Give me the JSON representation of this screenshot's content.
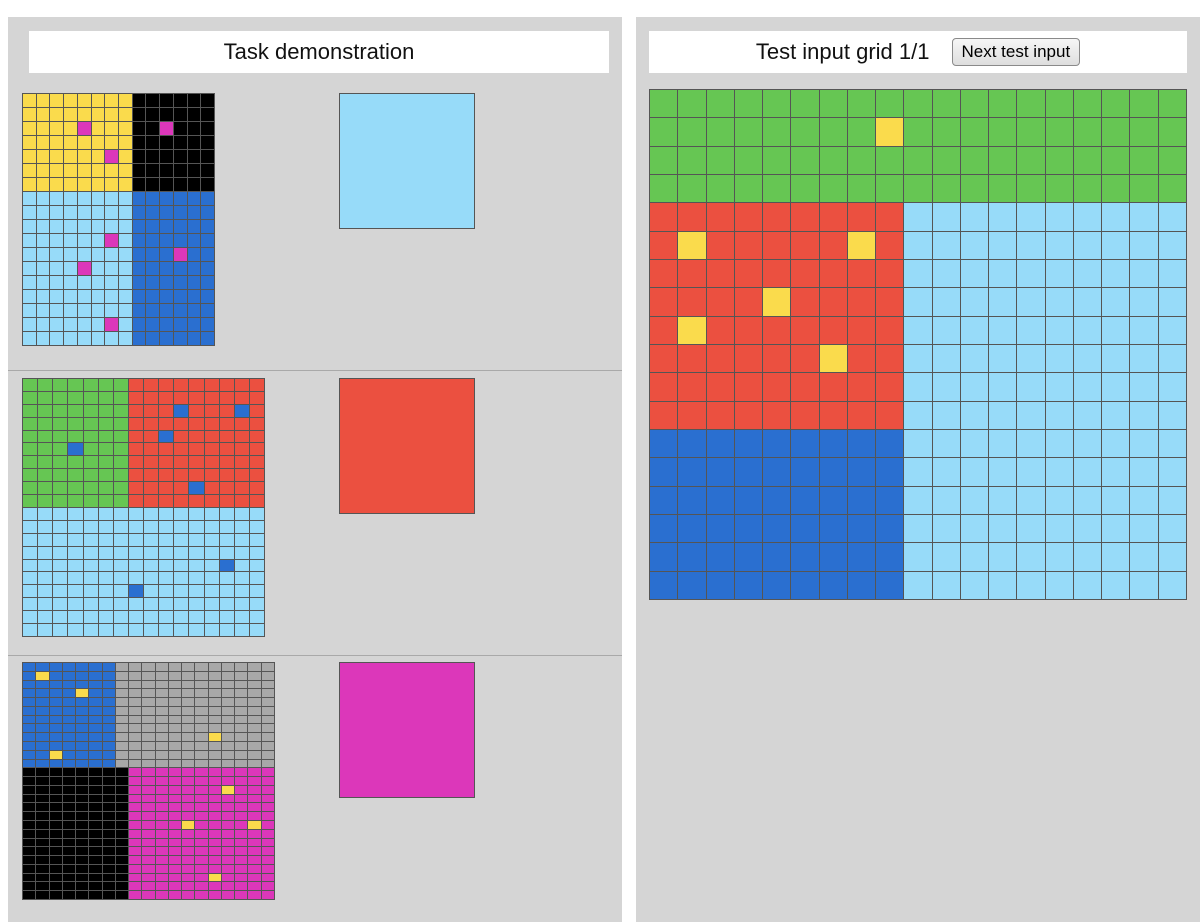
{
  "left_title": "Task demonstration",
  "right_title": "Test input grid 1/1",
  "next_button_label": "Next test input",
  "colors": {
    "0": "#000000",
    "1": "#2a6fd0",
    "2": "#eb5040",
    "3": "#66c653",
    "4": "#fadb4c",
    "5": "#a8a8a8",
    "6": "#dc37ba",
    "8": "#97dbf9"
  },
  "examples": [
    {
      "input_rows": [
        "44444444000000",
        "44444444000000",
        "44446444006000",
        "44444444000000",
        "44444464000000",
        "44444444000000",
        "44444444000000",
        "88888888111111",
        "88888888111111",
        "88888888111111",
        "88888868111111",
        "88888888111611",
        "88886888111111",
        "88888888111111",
        "88888888111111",
        "88888888111111",
        "88888868111111",
        "88888888111111"
      ],
      "output_rows": [
        "8"
      ]
    },
    {
      "input_rows": [
        "3333333222222222",
        "3333333222222222",
        "3333333222122212",
        "3333333222222222",
        "3333333221222222",
        "3331333222222222",
        "3333333222222222",
        "3333333222222222",
        "3333333222212222",
        "3333333222222222",
        "8888888888888888",
        "8888888888888888",
        "8888888888888888",
        "8888888888888888",
        "8888888888888188",
        "8888888888888888",
        "8888888188888888",
        "8888888888888888",
        "8888888888888888",
        "8888888888888888"
      ],
      "output_rows": [
        "2"
      ]
    },
    {
      "input_rows": [
        "1111111555555555555",
        "1411111555555555555",
        "1111111555555555555",
        "1111411555555555555",
        "1111111555555555555",
        "1111111555555555555",
        "1111111555555555555",
        "1111111555555555555",
        "1111111555555545555",
        "1111111555555555555",
        "1141111555555555555",
        "1111111555555555555",
        "0000000066666666666",
        "0000000066666666666",
        "0000000066666664666",
        "0000000066666666666",
        "0000000066666666666",
        "0000000066666666666",
        "0000000066664666646",
        "0000000066666666666",
        "0000000066666666666",
        "0000000066666666666",
        "0000000066666666666",
        "0000000066666666666",
        "0000000066666646666",
        "0000000066666666666",
        "0000000066666666666"
      ],
      "output_rows": [
        "6"
      ]
    }
  ],
  "test_input_rows": [
    "3333333333333333333",
    "3333333343333333333",
    "3333333333333333333",
    "3333333333333333333",
    "2222222228888888888",
    "2422222428888888888",
    "2222222228888888888",
    "2222422228888888888",
    "2422222228888888888",
    "2222224228888888888",
    "2222222228888888888",
    "2222222228888888888",
    "1111111118888888888",
    "1111111118888888888",
    "1111111118888888888",
    "1111111118888888888",
    "1111111118888888888",
    "1111111118888888888"
  ]
}
